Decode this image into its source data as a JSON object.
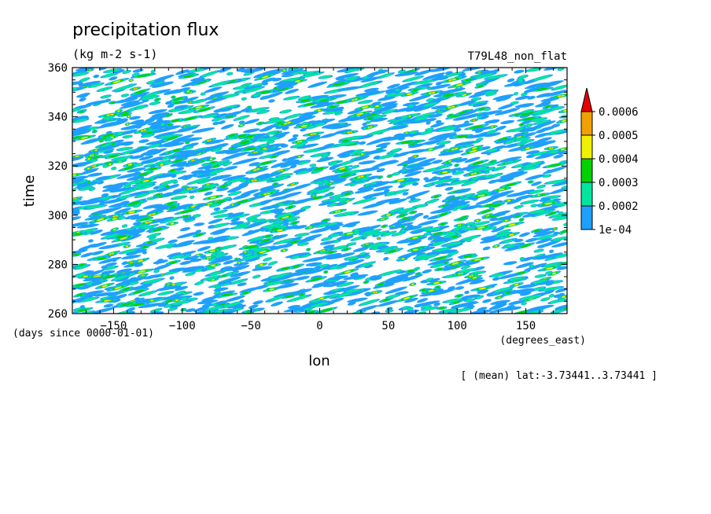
{
  "chart_data": {
    "type": "heatmap",
    "title": "precipitation flux",
    "units": "(kg m-2 s-1)",
    "run_label": "T79L48_non_flat",
    "xlabel": "lon",
    "xunits": "(degrees_east)",
    "ylabel": "time",
    "yunits": "(days since 0000-01-01)",
    "footnote": "[ (mean) lat:-3.73441..3.73441 ]",
    "xlim": [
      -180,
      180
    ],
    "ylim": [
      260,
      360
    ],
    "xticks": [
      -150,
      -100,
      -50,
      0,
      50,
      100,
      150
    ],
    "yticks": [
      260,
      280,
      300,
      320,
      340,
      360
    ],
    "colorbar": {
      "levels": [
        "1e-04",
        "0.0002",
        "0.0003",
        "0.0004",
        "0.0005",
        "0.0006"
      ],
      "colors": [
        "#1ea0ff",
        "#00e6a0",
        "#00d200",
        "#f0f000",
        "#f0a000",
        "#e60000"
      ],
      "extend": "max"
    },
    "background": "#ffffff"
  }
}
